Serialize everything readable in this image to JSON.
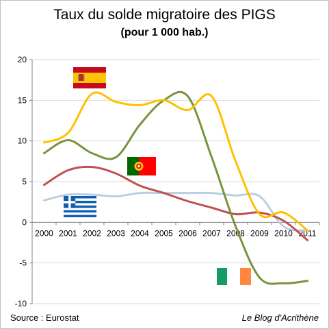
{
  "chart_data": {
    "type": "line",
    "title": "Taux du solde migratoire des PIGS",
    "subtitle": "(pour 1 000 hab.)",
    "xlabel": "",
    "ylabel": "",
    "x": [
      "2000",
      "2001",
      "2002",
      "2003",
      "2004",
      "2005",
      "2006",
      "2007",
      "2008",
      "2009",
      "2010",
      "2011"
    ],
    "y_ticks": [
      "20",
      "15",
      "10",
      "5",
      "0",
      "-5",
      "-10"
    ],
    "ylim": [
      -10,
      20
    ],
    "grid": true,
    "legend": "flags",
    "series": [
      {
        "color": "#ffc000",
        "values": [
          9.8,
          11.0,
          15.8,
          14.8,
          14.4,
          15.0,
          13.8,
          15.5,
          7.5,
          1.0,
          1.2,
          -1.0
        ],
        "flag": "spain-flag-icon"
      },
      {
        "color": "#77933c",
        "values": [
          8.5,
          10.1,
          8.5,
          8.0,
          12.0,
          15.0,
          15.5,
          8.0,
          -0.5,
          -6.8,
          -7.5,
          -7.2
        ],
        "flag": "ireland-flag-icon"
      },
      {
        "color": "#c0504d",
        "values": [
          4.6,
          6.4,
          6.8,
          6.0,
          4.5,
          3.6,
          2.6,
          1.8,
          1.0,
          1.2,
          0.2,
          -2.2
        ],
        "flag": "portugal-flag-icon"
      },
      {
        "color": "#b9cde5",
        "values": [
          2.7,
          3.4,
          3.4,
          3.2,
          3.6,
          3.6,
          3.6,
          3.6,
          3.3,
          3.2,
          -0.5,
          -1.0
        ],
        "flag": "greece-flag-icon"
      }
    ]
  },
  "footer": {
    "source": "Source : Eurostat",
    "credit": "Le Blog d'Acrithène"
  }
}
